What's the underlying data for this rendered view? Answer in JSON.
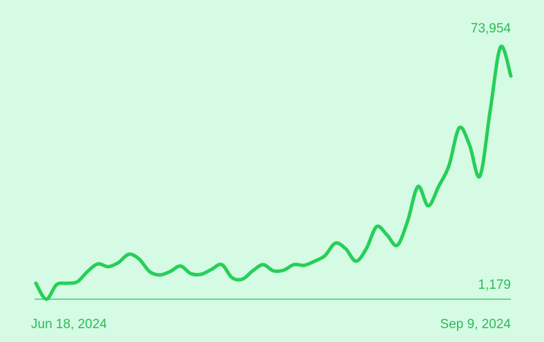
{
  "chart_data": {
    "type": "line",
    "categories": [
      "Jun 18, 2024",
      null,
      null,
      null,
      null,
      null,
      null,
      null,
      null,
      null,
      null,
      null,
      null,
      null,
      null,
      null,
      null,
      null,
      null,
      null,
      null,
      null,
      null,
      null,
      null,
      null,
      null,
      null,
      null,
      null,
      null,
      null,
      null,
      null,
      null,
      null,
      null,
      null,
      null,
      null,
      null,
      null,
      null,
      null,
      null,
      null,
      "Sep 9, 2024"
    ],
    "values": [
      5765,
      1179,
      5366,
      5765,
      6164,
      9155,
      11348,
      10551,
      11747,
      14140,
      12744,
      9155,
      8158,
      9155,
      10750,
      8557,
      8357,
      9753,
      11149,
      7360,
      6962,
      9354,
      11149,
      9354,
      9554,
      11149,
      10950,
      12146,
      13741,
      17330,
      15735,
      12146,
      15735,
      22116,
      19723,
      16732,
      23711,
      33681,
      28098,
      33681,
      39663,
      50630,
      45645,
      36672,
      55615,
      73954,
      65585
    ],
    "color": "#27cf58",
    "ylim": [
      1179,
      73954
    ],
    "yticks": [
      {
        "value": 1179,
        "label": "1,179"
      },
      {
        "value": 73954,
        "label": "73,954"
      }
    ]
  }
}
